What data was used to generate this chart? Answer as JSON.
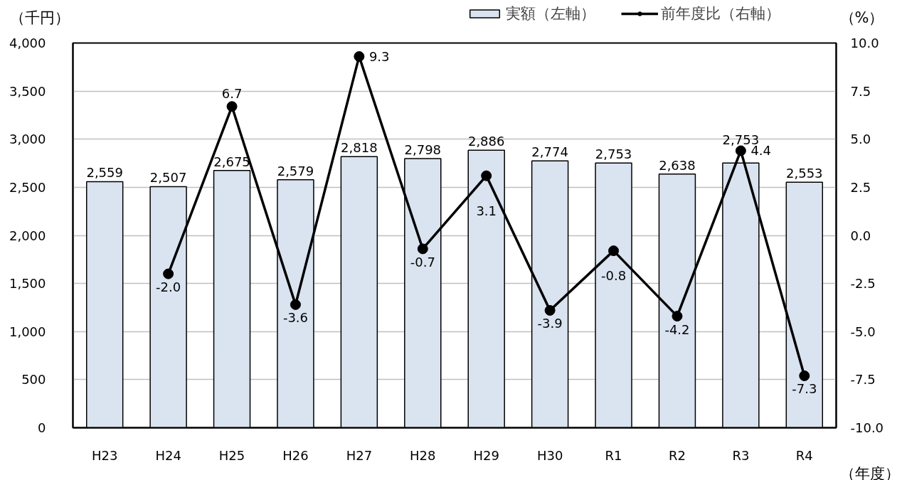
{
  "chart_data": {
    "type": "bar",
    "ylabel": "（千円）",
    "y2label": "（%）",
    "xlabel": "（年度）",
    "categories": [
      "H23",
      "H24",
      "H25",
      "H26",
      "H27",
      "H28",
      "H29",
      "H30",
      "R1",
      "R2",
      "R3",
      "R4"
    ],
    "series": [
      {
        "name": "実額（左軸）",
        "color": "#dae3f0",
        "values": [
          2559,
          2507,
          2675,
          2579,
          2818,
          2798,
          2886,
          2774,
          2753,
          2638,
          2753,
          2553
        ],
        "value_labels": [
          "2,559",
          "2,507",
          "2,675",
          "2,579",
          "2,818",
          "2,798",
          "2,886",
          "2,774",
          "2,753",
          "2,638",
          "2,753",
          "2,553"
        ]
      },
      {
        "name": "前年度比（右軸）",
        "type": "line",
        "axis": "y2",
        "color": "#000000",
        "values": [
          null,
          -2.0,
          6.7,
          -3.6,
          9.3,
          -0.7,
          3.1,
          -3.9,
          -0.8,
          -4.2,
          4.4,
          -7.3
        ],
        "value_labels": [
          null,
          "-2.0",
          "6.7",
          "-3.6",
          "9.3",
          "-0.7",
          "3.1",
          "-3.9",
          "-0.8",
          "-4.2",
          "4.4",
          "-7.3"
        ]
      }
    ],
    "ylim": [
      0,
      4000
    ],
    "yticks": [
      0,
      500,
      {
        "value": 1000,
        "label": "1,000"
      },
      {
        "value": 1500,
        "label": "1,500"
      },
      {
        "value": 2000,
        "label": "2,000"
      },
      {
        "value": 2500,
        "label": "2,500"
      },
      {
        "value": 3000,
        "label": "3,000"
      },
      {
        "value": 3500,
        "label": "3,500"
      },
      {
        "value": 4000,
        "label": "4,000"
      }
    ],
    "y2lim": [
      -10,
      10
    ],
    "y2ticks": [
      {
        "value": -10,
        "label": "-10.0"
      },
      {
        "value": -7.5,
        "label": "-7.5"
      },
      {
        "value": -5,
        "label": "-5.0"
      },
      {
        "value": -2.5,
        "label": "-2.5"
      },
      {
        "value": 0,
        "label": "0.0"
      },
      {
        "value": 2.5,
        "label": "2.5"
      },
      {
        "value": 5,
        "label": "5.0"
      },
      {
        "value": 7.5,
        "label": "7.5"
      },
      {
        "value": 10,
        "label": "10.0"
      }
    ],
    "grid": "y",
    "legend": "top right",
    "marker": "circle",
    "line_style": "solid"
  }
}
